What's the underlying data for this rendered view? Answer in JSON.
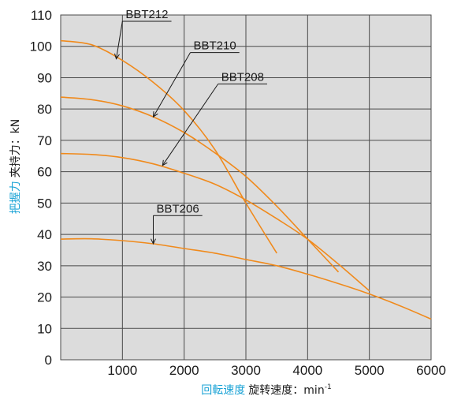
{
  "chart_data": {
    "type": "line",
    "xlabel": {
      "jp": "回転速度",
      "cn": "旋转速度：",
      "unit": "min",
      "exponent": "-1"
    },
    "ylabel": {
      "jp": "把握力",
      "cn": "夹持力：",
      "unit": "kN"
    },
    "xlim": [
      0,
      6000
    ],
    "ylim": [
      0,
      110
    ],
    "xticks": [
      "1000",
      "2000",
      "3000",
      "4000",
      "5000",
      "6000"
    ],
    "yticks": [
      "0",
      "10",
      "20",
      "30",
      "40",
      "50",
      "60",
      "70",
      "80",
      "90",
      "100",
      "110"
    ],
    "grid": true,
    "line_color": "#f08a1c",
    "grid_color": "#4a4a4a",
    "plot_background": "#dcdcdc",
    "label_color_jp": "#1ba3d6",
    "series": [
      {
        "name": "BBT212",
        "x": [
          0,
          500,
          1000,
          1500,
          2000,
          2500,
          3000,
          3500
        ],
        "y": [
          101.8,
          100.5,
          95.5,
          88.5,
          79.5,
          67,
          50,
          34
        ]
      },
      {
        "name": "BBT210",
        "x": [
          0,
          500,
          1000,
          1500,
          2000,
          2500,
          3000,
          3500,
          4000,
          4500
        ],
        "y": [
          83.8,
          83,
          81,
          77.5,
          72.5,
          66,
          58.5,
          49,
          38.5,
          28
        ]
      },
      {
        "name": "BBT208",
        "x": [
          0,
          500,
          1000,
          1500,
          2000,
          2500,
          3000,
          3500,
          4000,
          4500,
          5000
        ],
        "y": [
          65.8,
          65.5,
          64.5,
          62.5,
          59.5,
          56,
          51,
          45,
          38.5,
          30.5,
          22
        ]
      },
      {
        "name": "BBT206",
        "x": [
          0,
          500,
          1000,
          1500,
          2000,
          2500,
          3000,
          3500,
          4000,
          4500,
          5000,
          5500,
          6000
        ],
        "y": [
          38.5,
          38.6,
          38,
          37,
          35.5,
          34,
          32,
          30,
          27.3,
          24.3,
          21,
          17.2,
          13
        ]
      }
    ],
    "labels": [
      {
        "series": "BBT212",
        "text": "BBT212",
        "anchor": [
          1000,
          108
        ],
        "target": [
          900,
          96
        ]
      },
      {
        "series": "BBT210",
        "text": "BBT210",
        "anchor": [
          2100,
          98
        ],
        "target": [
          1500,
          77.5
        ]
      },
      {
        "series": "BBT208",
        "text": "BBT208",
        "anchor": [
          2550,
          88
        ],
        "target": [
          1650,
          62
        ]
      },
      {
        "series": "BBT206",
        "text": "BBT206",
        "anchor": [
          1500,
          46
        ],
        "target": [
          1500,
          37
        ]
      }
    ]
  }
}
